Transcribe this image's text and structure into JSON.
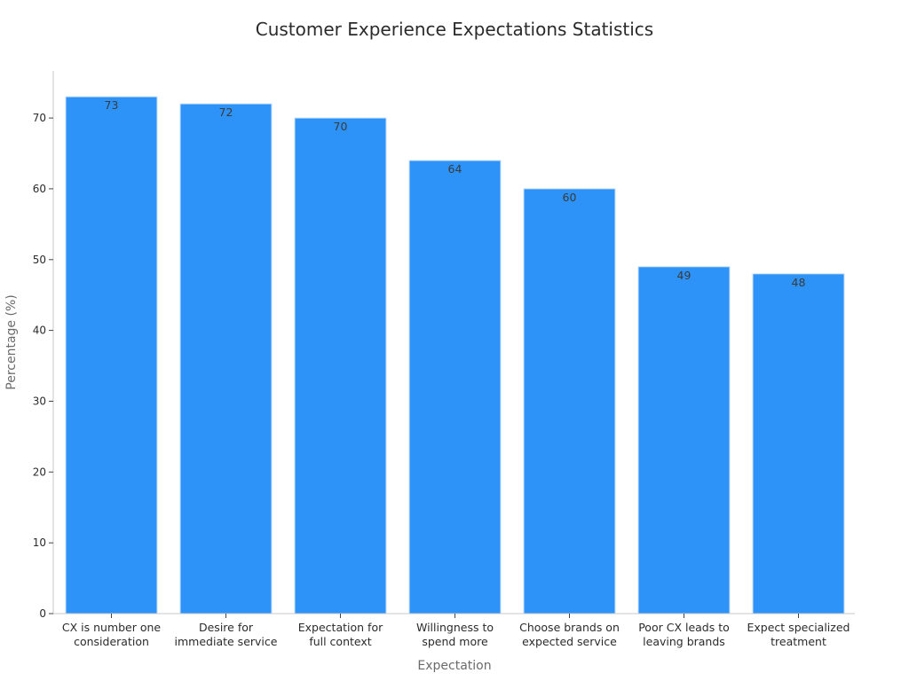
{
  "chart_data": {
    "type": "bar",
    "title": "Customer Experience Expectations Statistics",
    "xlabel": "Expectation",
    "ylabel": "Percentage (%)",
    "categories": [
      [
        "CX is number one",
        "consideration"
      ],
      [
        "Desire for",
        "immediate service"
      ],
      [
        "Expectation for",
        "full context"
      ],
      [
        "Willingness to",
        "spend more"
      ],
      [
        "Choose brands on",
        "expected service"
      ],
      [
        "Poor CX leads to",
        "leaving brands"
      ],
      [
        "Expect specialized",
        "treatment"
      ]
    ],
    "values": [
      73,
      72,
      70,
      64,
      60,
      49,
      48
    ],
    "data_labels": [
      "73",
      "72",
      "70",
      "64",
      "60",
      "49",
      "48"
    ],
    "yticks": [
      0,
      10,
      20,
      30,
      40,
      50,
      60,
      70
    ],
    "ytick_labels": [
      "0",
      "10",
      "20",
      "30",
      "40",
      "50",
      "60",
      "70"
    ],
    "ylim": [
      0,
      76.65
    ],
    "grid": false,
    "colors": {
      "bar": "#2e93f9",
      "bar_edge": "#c9dff7",
      "axis": "#c8c8c8"
    }
  }
}
